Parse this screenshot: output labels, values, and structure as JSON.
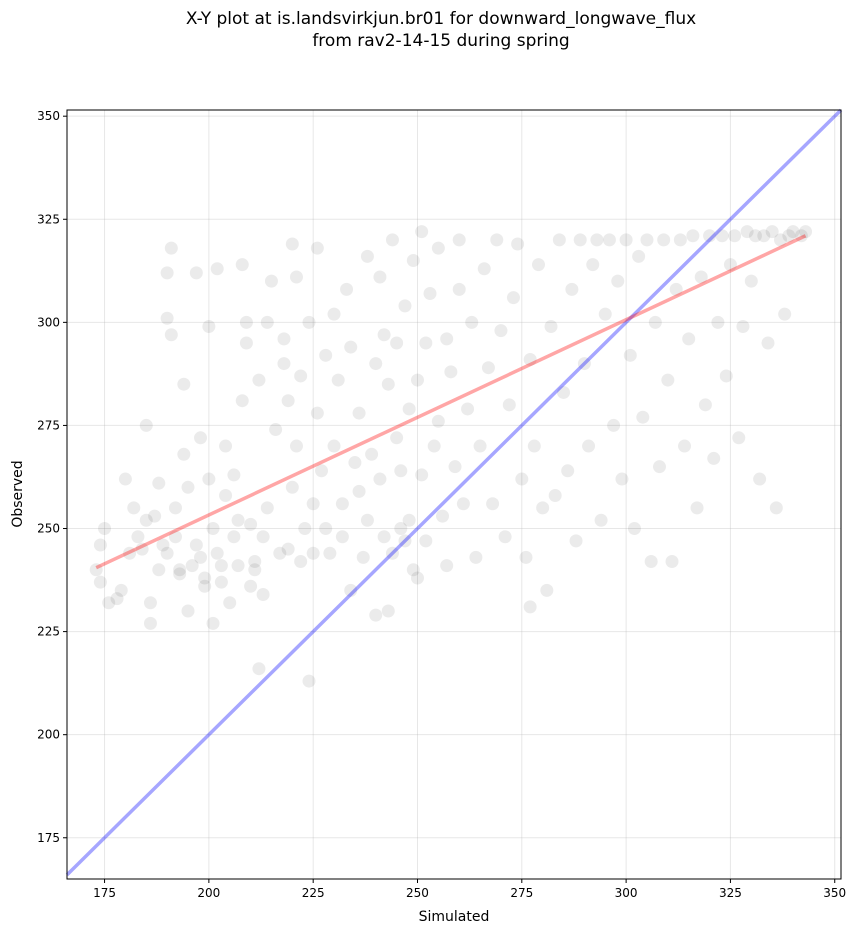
{
  "chart_data": {
    "type": "scatter",
    "title_line1": "X-Y plot at is.landsvirkjun.br01 for downward_longwave_flux",
    "title_line2": "from rav2-14-15 during spring",
    "xlabel": "Simulated",
    "ylabel": "Observed",
    "xlim": [
      166,
      351.5
    ],
    "ylim": [
      165,
      351.5
    ],
    "xticks": [
      175,
      200,
      225,
      250,
      275,
      300,
      325,
      350
    ],
    "yticks": [
      175,
      200,
      225,
      250,
      275,
      300,
      325,
      350
    ],
    "grid": true,
    "point_color": "#000000",
    "point_alpha": 0.08,
    "regression_line": {
      "color": "#ff0000",
      "x": [
        173,
        343
      ],
      "y": [
        240.5,
        321
      ]
    },
    "one_to_one_line": {
      "color": "#0000ff",
      "x": [
        166,
        351.5
      ],
      "y": [
        166,
        351.5
      ]
    },
    "points": [
      [
        173,
        240
      ],
      [
        174,
        237
      ],
      [
        174,
        246
      ],
      [
        175,
        250
      ],
      [
        176,
        232
      ],
      [
        178,
        233
      ],
      [
        179,
        235
      ],
      [
        180,
        262
      ],
      [
        181,
        244
      ],
      [
        182,
        255
      ],
      [
        183,
        248
      ],
      [
        184,
        245
      ],
      [
        185,
        252
      ],
      [
        185,
        275
      ],
      [
        186,
        227
      ],
      [
        186,
        232
      ],
      [
        187,
        253
      ],
      [
        188,
        261
      ],
      [
        188,
        240
      ],
      [
        189,
        246
      ],
      [
        190,
        244
      ],
      [
        190,
        301
      ],
      [
        190,
        312
      ],
      [
        191,
        318
      ],
      [
        191,
        297
      ],
      [
        192,
        255
      ],
      [
        192,
        248
      ],
      [
        193,
        240
      ],
      [
        193,
        239
      ],
      [
        194,
        285
      ],
      [
        194,
        268
      ],
      [
        195,
        230
      ],
      [
        195,
        260
      ],
      [
        196,
        241
      ],
      [
        197,
        246
      ],
      [
        197,
        312
      ],
      [
        198,
        272
      ],
      [
        198,
        243
      ],
      [
        199,
        238
      ],
      [
        199,
        236
      ],
      [
        200,
        299
      ],
      [
        200,
        262
      ],
      [
        201,
        250
      ],
      [
        201,
        227
      ],
      [
        202,
        244
      ],
      [
        202,
        313
      ],
      [
        203,
        241
      ],
      [
        203,
        237
      ],
      [
        204,
        270
      ],
      [
        204,
        258
      ],
      [
        205,
        232
      ],
      [
        206,
        248
      ],
      [
        206,
        263
      ],
      [
        207,
        241
      ],
      [
        207,
        252
      ],
      [
        208,
        281
      ],
      [
        208,
        314
      ],
      [
        209,
        300
      ],
      [
        209,
        295
      ],
      [
        210,
        251
      ],
      [
        210,
        236
      ],
      [
        211,
        242
      ],
      [
        211,
        240
      ],
      [
        212,
        216
      ],
      [
        212,
        286
      ],
      [
        213,
        248
      ],
      [
        213,
        234
      ],
      [
        214,
        255
      ],
      [
        214,
        300
      ],
      [
        215,
        310
      ],
      [
        216,
        274
      ],
      [
        217,
        244
      ],
      [
        218,
        296
      ],
      [
        218,
        290
      ],
      [
        219,
        245
      ],
      [
        219,
        281
      ],
      [
        220,
        260
      ],
      [
        220,
        319
      ],
      [
        221,
        311
      ],
      [
        221,
        270
      ],
      [
        222,
        242
      ],
      [
        222,
        287
      ],
      [
        223,
        250
      ],
      [
        224,
        213
      ],
      [
        224,
        300
      ],
      [
        225,
        244
      ],
      [
        225,
        256
      ],
      [
        226,
        318
      ],
      [
        226,
        278
      ],
      [
        227,
        264
      ],
      [
        228,
        250
      ],
      [
        228,
        292
      ],
      [
        229,
        244
      ],
      [
        230,
        270
      ],
      [
        230,
        302
      ],
      [
        231,
        286
      ],
      [
        232,
        256
      ],
      [
        232,
        248
      ],
      [
        233,
        308
      ],
      [
        234,
        235
      ],
      [
        234,
        294
      ],
      [
        235,
        266
      ],
      [
        236,
        278
      ],
      [
        236,
        259
      ],
      [
        237,
        243
      ],
      [
        238,
        316
      ],
      [
        238,
        252
      ],
      [
        239,
        268
      ],
      [
        240,
        229
      ],
      [
        240,
        290
      ],
      [
        241,
        311
      ],
      [
        241,
        262
      ],
      [
        242,
        248
      ],
      [
        242,
        297
      ],
      [
        243,
        230
      ],
      [
        243,
        285
      ],
      [
        244,
        244
      ],
      [
        244,
        320
      ],
      [
        245,
        295
      ],
      [
        245,
        272
      ],
      [
        246,
        250
      ],
      [
        246,
        264
      ],
      [
        247,
        247
      ],
      [
        247,
        304
      ],
      [
        248,
        279
      ],
      [
        248,
        252
      ],
      [
        249,
        315
      ],
      [
        249,
        240
      ],
      [
        250,
        238
      ],
      [
        250,
        286
      ],
      [
        251,
        322
      ],
      [
        251,
        263
      ],
      [
        252,
        247
      ],
      [
        252,
        295
      ],
      [
        253,
        307
      ],
      [
        254,
        270
      ],
      [
        255,
        276
      ],
      [
        255,
        318
      ],
      [
        256,
        253
      ],
      [
        257,
        241
      ],
      [
        257,
        296
      ],
      [
        258,
        288
      ],
      [
        259,
        265
      ],
      [
        260,
        320
      ],
      [
        260,
        308
      ],
      [
        261,
        256
      ],
      [
        262,
        279
      ],
      [
        263,
        300
      ],
      [
        264,
        243
      ],
      [
        265,
        270
      ],
      [
        266,
        313
      ],
      [
        267,
        289
      ],
      [
        268,
        256
      ],
      [
        269,
        320
      ],
      [
        270,
        298
      ],
      [
        271,
        248
      ],
      [
        272,
        280
      ],
      [
        273,
        306
      ],
      [
        274,
        319
      ],
      [
        275,
        262
      ],
      [
        276,
        243
      ],
      [
        277,
        231
      ],
      [
        277,
        291
      ],
      [
        278,
        270
      ],
      [
        279,
        314
      ],
      [
        280,
        255
      ],
      [
        281,
        235
      ],
      [
        282,
        299
      ],
      [
        283,
        258
      ],
      [
        284,
        320
      ],
      [
        285,
        283
      ],
      [
        286,
        264
      ],
      [
        287,
        308
      ],
      [
        288,
        247
      ],
      [
        289,
        320
      ],
      [
        290,
        290
      ],
      [
        291,
        270
      ],
      [
        292,
        314
      ],
      [
        293,
        320
      ],
      [
        294,
        252
      ],
      [
        295,
        302
      ],
      [
        296,
        320
      ],
      [
        297,
        275
      ],
      [
        298,
        310
      ],
      [
        299,
        262
      ],
      [
        300,
        320
      ],
      [
        301,
        292
      ],
      [
        302,
        250
      ],
      [
        303,
        316
      ],
      [
        304,
        277
      ],
      [
        305,
        320
      ],
      [
        306,
        242
      ],
      [
        307,
        300
      ],
      [
        308,
        265
      ],
      [
        309,
        320
      ],
      [
        310,
        286
      ],
      [
        311,
        242
      ],
      [
        312,
        308
      ],
      [
        313,
        320
      ],
      [
        314,
        270
      ],
      [
        315,
        296
      ],
      [
        316,
        321
      ],
      [
        317,
        255
      ],
      [
        318,
        311
      ],
      [
        319,
        280
      ],
      [
        320,
        321
      ],
      [
        321,
        267
      ],
      [
        322,
        300
      ],
      [
        323,
        321
      ],
      [
        324,
        287
      ],
      [
        325,
        314
      ],
      [
        326,
        321
      ],
      [
        327,
        272
      ],
      [
        328,
        299
      ],
      [
        329,
        322
      ],
      [
        330,
        310
      ],
      [
        331,
        321
      ],
      [
        332,
        262
      ],
      [
        333,
        321
      ],
      [
        334,
        295
      ],
      [
        335,
        322
      ],
      [
        336,
        255
      ],
      [
        337,
        320
      ],
      [
        338,
        302
      ],
      [
        339,
        321
      ],
      [
        340,
        322
      ],
      [
        342,
        321
      ],
      [
        343,
        322
      ]
    ]
  }
}
